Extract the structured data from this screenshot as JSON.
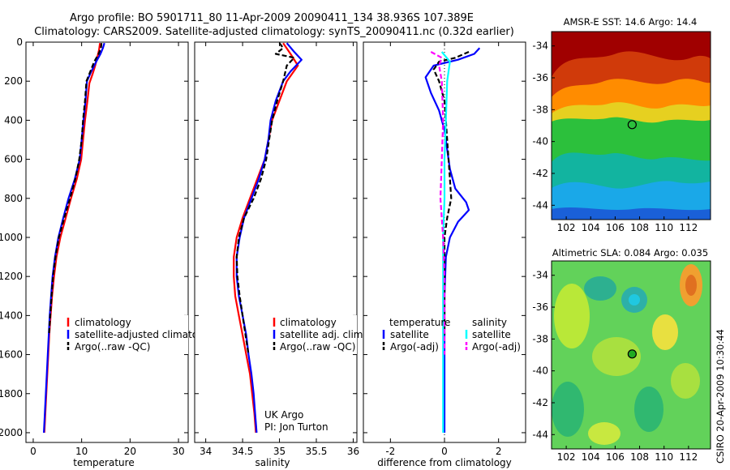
{
  "title_line1": "Argo profile: BO 5901711_80 11-Apr-2009 20090411_134 38.936S 107.389E",
  "title_line2": "Climatology: CARS2009. Satellite-adjusted climatology: synTS_20090411.nc (0.32d earlier)",
  "side_label": "CSIRO 20-Apr-2009 10:30:44",
  "colors": {
    "climatology": "#ff0000",
    "satellite": "#0000ff",
    "argo": "#000000",
    "sal_satellite": "#00ffff",
    "sal_argo": "#ff00ff"
  },
  "chart_data": [
    {
      "id": "temperature",
      "type": "line",
      "xlabel": "temperature",
      "ylabel": "",
      "xlim": [
        -1.5,
        32
      ],
      "ylim": [
        2050,
        0
      ],
      "xticks": [
        0,
        10,
        20,
        30
      ],
      "yticks": [
        0,
        200,
        400,
        600,
        800,
        1000,
        1200,
        1400,
        1600,
        1800,
        2000
      ],
      "legend": [
        "climatology",
        "satellite-adjusted climatology",
        "Argo(..raw -QC)"
      ],
      "annotations": [],
      "series": [
        {
          "name": "climatology",
          "key": "climatology",
          "dash": "",
          "points": [
            [
              13.8,
              5
            ],
            [
              13.6,
              40
            ],
            [
              13.2,
              80
            ],
            [
              12.8,
              120
            ],
            [
              12.3,
              160
            ],
            [
              11.6,
              210
            ],
            [
              11.2,
              300
            ],
            [
              10.7,
              400
            ],
            [
              10.3,
              500
            ],
            [
              9.9,
              600
            ],
            [
              9.0,
              700
            ],
            [
              7.8,
              800
            ],
            [
              6.7,
              900
            ],
            [
              5.6,
              1000
            ],
            [
              4.8,
              1100
            ],
            [
              4.3,
              1200
            ],
            [
              3.9,
              1300
            ],
            [
              3.6,
              1400
            ],
            [
              3.3,
              1500
            ],
            [
              3.1,
              1600
            ],
            [
              2.9,
              1700
            ],
            [
              2.7,
              1800
            ],
            [
              2.5,
              1900
            ],
            [
              2.3,
              2000
            ]
          ]
        },
        {
          "name": "satellite-adjusted climatology",
          "key": "satellite",
          "dash": "",
          "points": [
            [
              14.7,
              5
            ],
            [
              14.4,
              30
            ],
            [
              13.9,
              60
            ],
            [
              13.0,
              100
            ],
            [
              12.0,
              150
            ],
            [
              11.1,
              200
            ],
            [
              10.8,
              300
            ],
            [
              10.4,
              400
            ],
            [
              10.0,
              500
            ],
            [
              9.6,
              600
            ],
            [
              8.6,
              700
            ],
            [
              7.3,
              800
            ],
            [
              6.2,
              900
            ],
            [
              5.2,
              1000
            ],
            [
              4.5,
              1100
            ],
            [
              4.0,
              1200
            ],
            [
              3.7,
              1300
            ],
            [
              3.4,
              1400
            ],
            [
              3.2,
              1500
            ],
            [
              3.0,
              1600
            ],
            [
              2.8,
              1700
            ],
            [
              2.6,
              1800
            ],
            [
              2.4,
              1900
            ],
            [
              2.2,
              2000
            ]
          ]
        },
        {
          "name": "Argo(..raw -QC)",
          "key": "argo",
          "dash": "6,3",
          "points": [
            [
              14.1,
              5
            ],
            [
              14.0,
              30
            ],
            [
              13.5,
              60
            ],
            [
              12.6,
              100
            ],
            [
              11.8,
              150
            ],
            [
              11.0,
              200
            ],
            [
              10.7,
              300
            ],
            [
              10.3,
              400
            ],
            [
              10.0,
              500
            ],
            [
              9.5,
              600
            ],
            [
              8.7,
              700
            ],
            [
              7.6,
              800
            ],
            [
              6.4,
              900
            ],
            [
              5.3,
              1000
            ],
            [
              4.6,
              1100
            ],
            [
              4.1,
              1200
            ],
            [
              3.8,
              1300
            ],
            [
              3.5,
              1400
            ],
            [
              3.25,
              1500
            ]
          ]
        }
      ]
    },
    {
      "id": "salinity",
      "type": "line",
      "xlabel": "salinity",
      "ylabel": "",
      "xlim": [
        33.85,
        36.05
      ],
      "ylim": [
        2050,
        0
      ],
      "xticks": [
        34,
        34.5,
        35,
        35.5,
        36
      ],
      "legend": [
        "climatology",
        "satellite adj. clim.",
        "Argo(..raw -QC)"
      ],
      "annotations": [
        "UK Argo",
        "PI: Jon Turton"
      ],
      "series": [
        {
          "name": "climatology",
          "key": "climatology",
          "dash": "",
          "points": [
            [
              35.05,
              5
            ],
            [
              35.15,
              60
            ],
            [
              35.25,
              120
            ],
            [
              35.1,
              200
            ],
            [
              35.0,
              300
            ],
            [
              34.9,
              400
            ],
            [
              34.85,
              500
            ],
            [
              34.8,
              600
            ],
            [
              34.7,
              700
            ],
            [
              34.6,
              800
            ],
            [
              34.5,
              900
            ],
            [
              34.42,
              1000
            ],
            [
              34.38,
              1100
            ],
            [
              34.38,
              1200
            ],
            [
              34.4,
              1300
            ],
            [
              34.45,
              1400
            ],
            [
              34.5,
              1500
            ],
            [
              34.55,
              1600
            ],
            [
              34.6,
              1700
            ],
            [
              34.63,
              1800
            ],
            [
              34.66,
              1900
            ],
            [
              34.68,
              2000
            ]
          ]
        },
        {
          "name": "satellite adj. clim.",
          "key": "satellite",
          "dash": "",
          "points": [
            [
              35.1,
              5
            ],
            [
              35.2,
              50
            ],
            [
              35.3,
              90
            ],
            [
              35.15,
              150
            ],
            [
              35.05,
              200
            ],
            [
              34.95,
              300
            ],
            [
              34.88,
              400
            ],
            [
              34.85,
              500
            ],
            [
              34.8,
              600
            ],
            [
              34.72,
              700
            ],
            [
              34.62,
              800
            ],
            [
              34.52,
              900
            ],
            [
              34.46,
              1000
            ],
            [
              34.42,
              1100
            ],
            [
              34.42,
              1200
            ],
            [
              34.45,
              1300
            ],
            [
              34.5,
              1400
            ],
            [
              34.55,
              1500
            ],
            [
              34.58,
              1600
            ],
            [
              34.62,
              1700
            ],
            [
              34.65,
              1800
            ],
            [
              34.67,
              1900
            ],
            [
              34.69,
              2000
            ]
          ]
        },
        {
          "name": "Argo(..raw -QC)",
          "key": "argo",
          "dash": "6,3",
          "points": [
            [
              35.0,
              5
            ],
            [
              35.05,
              30
            ],
            [
              34.95,
              60
            ],
            [
              35.2,
              80
            ],
            [
              35.1,
              120
            ],
            [
              35.05,
              200
            ],
            [
              34.97,
              300
            ],
            [
              34.9,
              400
            ],
            [
              34.86,
              500
            ],
            [
              34.82,
              600
            ],
            [
              34.75,
              700
            ],
            [
              34.65,
              800
            ],
            [
              34.52,
              900
            ],
            [
              34.45,
              1000
            ],
            [
              34.42,
              1100
            ],
            [
              34.43,
              1200
            ],
            [
              34.46,
              1300
            ],
            [
              34.5,
              1400
            ],
            [
              34.54,
              1500
            ],
            [
              34.58,
              1600
            ]
          ]
        }
      ]
    },
    {
      "id": "difference",
      "type": "line",
      "xlabel": "difference from climatology",
      "ylabel": "",
      "xlim": [
        -3,
        3
      ],
      "ylim": [
        2050,
        0
      ],
      "xticks": [
        -2,
        0,
        2
      ],
      "legend_headers": [
        "temperature",
        "salinity"
      ],
      "legend": [
        "satellite",
        "Argo(-adj)",
        "satellite",
        "Argo(-adj)"
      ],
      "series": [
        {
          "name": "temperature satellite",
          "key": "satellite",
          "dash": "",
          "points": [
            [
              1.3,
              30
            ],
            [
              1.1,
              60
            ],
            [
              0.5,
              90
            ],
            [
              -0.4,
              120
            ],
            [
              -0.7,
              180
            ],
            [
              -0.5,
              260
            ],
            [
              -0.2,
              350
            ],
            [
              0.0,
              450
            ],
            [
              0.1,
              550
            ],
            [
              0.2,
              650
            ],
            [
              0.4,
              750
            ],
            [
              0.8,
              820
            ],
            [
              0.9,
              860
            ],
            [
              0.5,
              920
            ],
            [
              0.2,
              1000
            ],
            [
              0.05,
              1100
            ],
            [
              0.0,
              1300
            ],
            [
              0.0,
              1500
            ],
            [
              0.0,
              1700
            ],
            [
              0.0,
              1900
            ],
            [
              0.0,
              2000
            ]
          ]
        },
        {
          "name": "temperature Argo(-adj)",
          "key": "argo",
          "dash": "6,3",
          "points": [
            [
              0.9,
              50
            ],
            [
              0.4,
              80
            ],
            [
              -0.2,
              100
            ],
            [
              -0.4,
              140
            ],
            [
              -0.2,
              200
            ],
            [
              0.0,
              300
            ],
            [
              0.05,
              400
            ],
            [
              0.1,
              500
            ],
            [
              0.15,
              600
            ],
            [
              0.2,
              700
            ],
            [
              0.25,
              800
            ],
            [
              0.1,
              900
            ],
            [
              0.0,
              1000
            ],
            [
              0.0,
              1200
            ],
            [
              0.0,
              1400
            ],
            [
              0.0,
              1500
            ]
          ]
        },
        {
          "name": "salinity satellite",
          "key": "sal_satellite",
          "dash": "",
          "points": [
            [
              -0.1,
              50
            ],
            [
              0.2,
              100
            ],
            [
              0.1,
              200
            ],
            [
              0.05,
              400
            ],
            [
              0.0,
              600
            ],
            [
              0.0,
              800
            ],
            [
              -0.05,
              1000
            ],
            [
              -0.05,
              1200
            ],
            [
              -0.05,
              1400
            ],
            [
              -0.05,
              1600
            ],
            [
              -0.05,
              1800
            ],
            [
              -0.05,
              2000
            ]
          ]
        },
        {
          "name": "salinity Argo(-adj)",
          "key": "sal_argo",
          "dash": "6,3",
          "points": [
            [
              -0.5,
              50
            ],
            [
              -0.1,
              80
            ],
            [
              -0.2,
              120
            ],
            [
              -0.1,
              200
            ],
            [
              -0.05,
              400
            ],
            [
              -0.1,
              600
            ],
            [
              -0.15,
              800
            ],
            [
              -0.05,
              1000
            ],
            [
              0.0,
              1200
            ],
            [
              0.0,
              1400
            ],
            [
              0.0,
              1600
            ]
          ]
        }
      ]
    },
    {
      "id": "sst_map",
      "type": "heatmap",
      "title": "AMSR-E SST: 14.6 Argo: 14.4",
      "xlim": [
        100.8,
        113.8
      ],
      "ylim": [
        -44.9,
        -33.1
      ],
      "xticks": [
        102,
        104,
        106,
        108,
        110,
        112
      ],
      "yticks": [
        -34,
        -36,
        -38,
        -40,
        -42,
        -44
      ],
      "marker": {
        "lon": 107.39,
        "lat": -38.94,
        "fill": "none"
      }
    },
    {
      "id": "sla_map",
      "type": "heatmap",
      "title": "Altimetric SLA: 0.084 Argo: 0.035",
      "xlim": [
        100.8,
        113.8
      ],
      "ylim": [
        -44.9,
        -33.1
      ],
      "xticks": [
        102,
        104,
        106,
        108,
        110,
        112
      ],
      "yticks": [
        -34,
        -36,
        -38,
        -40,
        -42,
        -44
      ],
      "marker": {
        "lon": 107.39,
        "lat": -38.94,
        "fill": "#22aa22"
      }
    }
  ]
}
